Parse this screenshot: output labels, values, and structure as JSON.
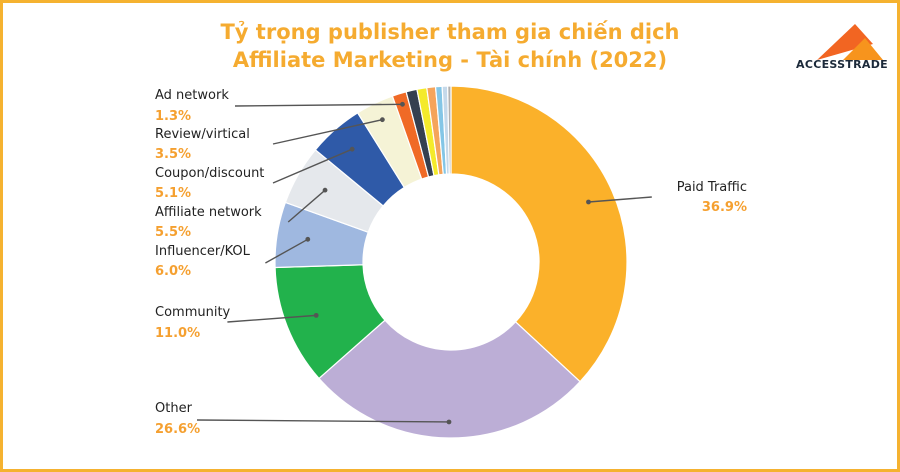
{
  "title_line1": "Tỷ trọng publisher tham gia chiến dịch",
  "title_line2": "Affiliate Marketing - Tài chính (2022)",
  "logo": {
    "text": "ACCESSTRADE",
    "colors": [
      "#f26522",
      "#f7941d"
    ]
  },
  "chart_data": {
    "type": "pie",
    "donut": true,
    "title": "Tỷ trọng publisher tham gia chiến dịch Affiliate Marketing - Tài chính (2022)",
    "categories": [
      "Paid Traffic",
      "Other",
      "Community",
      "Influencer/KOL",
      "Affiliate network",
      "Coupon/discount",
      "Review/virtical",
      "Ad network"
    ],
    "values": [
      36.9,
      26.6,
      11.0,
      6.0,
      5.5,
      5.1,
      3.5,
      1.3
    ],
    "value_labels": [
      "36.9%",
      "26.6%",
      "11.0%",
      "6.0%",
      "5.5%",
      "5.1%",
      "3.5%",
      "1.3%"
    ],
    "colors": [
      "#fbb12a",
      "#bcaed6",
      "#22b24c",
      "#9fb8e0",
      "#e5e8ec",
      "#2f5aa8",
      "#f5f3d6",
      "#f06a26"
    ],
    "unlabeled_slices": [
      {
        "value": 1.0,
        "color": "#354050"
      },
      {
        "value": 0.9,
        "color": "#f4ea2b"
      },
      {
        "value": 0.8,
        "color": "#f5a45b"
      },
      {
        "value": 0.6,
        "color": "#84c6e6"
      },
      {
        "value": 0.5,
        "color": "#c5d9ea"
      },
      {
        "value": 0.3,
        "color": "#b0b0b0"
      }
    ],
    "legend": "callout labels"
  },
  "colors": {
    "title": "#f5ab30",
    "percent": "#f5a030",
    "border": "#f5b230",
    "label": "#222222"
  }
}
